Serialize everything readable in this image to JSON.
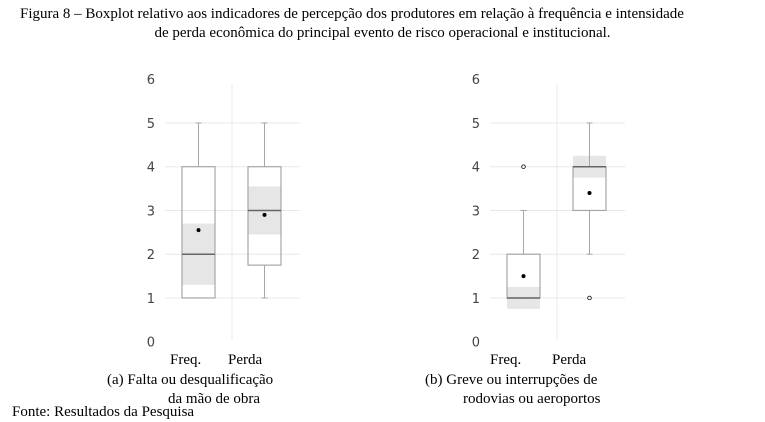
{
  "title_line1": "Figura 8 – Boxplot relativo aos indicadores de percepção dos produtores em relação à frequência e intensidade",
  "title_line2": "de perda econômica do principal evento de risco operacional e institucional.",
  "source": "Fonte: Resultados da Pesquisa",
  "chart_data": [
    {
      "type": "boxplot",
      "caption_line1": "(a)  Falta ou desqualificação",
      "caption_line2": "da mão de obra",
      "categories": [
        "Freq.",
        "Perda"
      ],
      "ylim": [
        0,
        6
      ],
      "yticks": [
        "0",
        "1",
        "2",
        "3",
        "4",
        "5",
        "6"
      ],
      "grid": true,
      "boxes": [
        {
          "min": 1,
          "q1": 1,
          "median": 2,
          "q3": 4,
          "max": 5,
          "mean": 2.55,
          "ci": [
            1.3,
            2.7
          ],
          "outliers": []
        },
        {
          "min": 1,
          "q1": 1.75,
          "median": 3,
          "q3": 4,
          "max": 5,
          "mean": 2.9,
          "ci": [
            2.45,
            3.55
          ],
          "outliers": []
        }
      ]
    },
    {
      "type": "boxplot",
      "caption_line1": "(b)  Greve ou interrupções de",
      "caption_line2": "rodovias ou aeroportos",
      "categories": [
        "Freq.",
        "Perda"
      ],
      "ylim": [
        0,
        6
      ],
      "yticks": [
        "0",
        "1",
        "2",
        "3",
        "4",
        "5",
        "6"
      ],
      "grid": true,
      "boxes": [
        {
          "min": 1,
          "q1": 1,
          "median": 1,
          "q3": 2,
          "max": 3,
          "mean": 1.5,
          "ci": [
            0.75,
            1.25
          ],
          "outliers": [
            4
          ]
        },
        {
          "min": 2,
          "q1": 3,
          "median": 4,
          "q3": 4,
          "max": 5,
          "mean": 3.4,
          "ci": [
            3.75,
            4.25
          ],
          "outliers": [
            1
          ]
        }
      ]
    }
  ],
  "colors": {
    "box": "#a6a6a6",
    "ci": "#e6e6e6",
    "grid": "#e8e8e8",
    "mean": "#000000"
  }
}
